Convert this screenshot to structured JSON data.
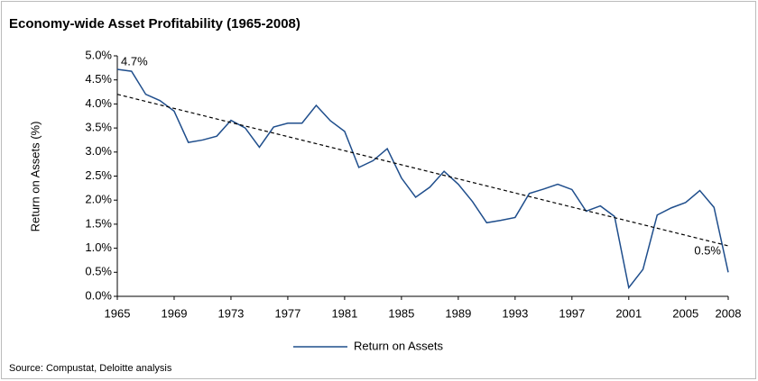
{
  "chart_data": {
    "type": "line",
    "title": "Economy-wide Asset Profitability (1965-2008)",
    "y_label": "Return on Assets (%)",
    "source": "Source: Compustat, Deloitte analysis",
    "x": [
      1965,
      1966,
      1967,
      1968,
      1969,
      1970,
      1971,
      1972,
      1973,
      1974,
      1975,
      1976,
      1977,
      1978,
      1979,
      1980,
      1981,
      1982,
      1983,
      1984,
      1985,
      1986,
      1987,
      1988,
      1989,
      1990,
      1991,
      1992,
      1993,
      1994,
      1995,
      1996,
      1997,
      1998,
      1999,
      2000,
      2001,
      2002,
      2003,
      2004,
      2005,
      2006,
      2007,
      2008
    ],
    "series": [
      {
        "name": "Return on Assets",
        "color": "#1f4e8c",
        "values": [
          4.72,
          4.68,
          4.2,
          4.07,
          3.85,
          3.2,
          3.25,
          3.33,
          3.66,
          3.5,
          3.1,
          3.52,
          3.6,
          3.6,
          3.97,
          3.65,
          3.43,
          2.68,
          2.82,
          3.07,
          2.46,
          2.06,
          2.27,
          2.6,
          2.33,
          1.97,
          1.53,
          1.58,
          1.64,
          2.14,
          2.23,
          2.33,
          2.22,
          1.77,
          1.88,
          1.66,
          0.18,
          0.56,
          1.69,
          1.84,
          1.95,
          2.2,
          1.85,
          0.5
        ]
      }
    ],
    "trend": {
      "x": [
        1965,
        2008
      ],
      "values": [
        4.2,
        1.05
      ],
      "color": "#000000"
    },
    "annotations": [
      {
        "text": "4.7%",
        "x": 1965,
        "y": 4.72
      },
      {
        "text": "0.5%",
        "x": 2008,
        "y": 0.5
      }
    ],
    "xlim": [
      1965,
      2008
    ],
    "xticks": [
      1965,
      1969,
      1973,
      1977,
      1981,
      1985,
      1989,
      1993,
      1997,
      2001,
      2005,
      2008
    ],
    "ylim": [
      0,
      5
    ],
    "yticks": [
      {
        "value": 0,
        "label": "0.0%"
      },
      {
        "value": 0.5,
        "label": "0.5%"
      },
      {
        "value": 1,
        "label": "1.0%"
      },
      {
        "value": 1.5,
        "label": "1.5%"
      },
      {
        "value": 2,
        "label": "2.0%"
      },
      {
        "value": 2.5,
        "label": "2.5%"
      },
      {
        "value": 3,
        "label": "3.0%"
      },
      {
        "value": 3.5,
        "label": "3.5%"
      },
      {
        "value": 4,
        "label": "4.0%"
      },
      {
        "value": 4.5,
        "label": "4.5%"
      },
      {
        "value": 5,
        "label": "5.0%"
      }
    ],
    "legend": "bottom"
  }
}
